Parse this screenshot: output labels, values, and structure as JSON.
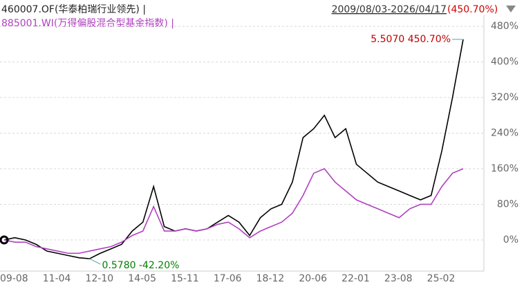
{
  "chart_data": {
    "type": "line",
    "title": "460007.OF(华泰柏瑞行业领先) |",
    "subtitle": "885001.WI(万得偏股混合型基金指数) |",
    "date_range": "2009/08/03-2026/04/17",
    "total_return": "(450.70%)",
    "annotations": [
      "5.5070 450.70%",
      "0.5780 -42.20%"
    ],
    "categories": [
      "09-08",
      null,
      null,
      null,
      "11-04",
      null,
      null,
      null,
      "12-10",
      null,
      null,
      null,
      "14-05",
      null,
      null,
      null,
      "15-11",
      null,
      null,
      null,
      "17-06",
      null,
      null,
      null,
      "18-12",
      null,
      null,
      null,
      "20-06",
      null,
      null,
      null,
      "22-01",
      null,
      null,
      null,
      "23-08",
      null,
      null,
      null,
      "25-02",
      null,
      null,
      null
    ],
    "series": [
      {
        "name": "460007.OF",
        "color": "#000000",
        "values": [
          0,
          5,
          0,
          -10,
          -25,
          -30,
          -35,
          -40,
          -42.2,
          -30,
          -20,
          -10,
          20,
          40,
          120,
          30,
          20,
          25,
          20,
          25,
          40,
          55,
          40,
          10,
          50,
          70,
          80,
          130,
          230,
          250,
          280,
          230,
          250,
          170,
          150,
          130,
          120,
          110,
          100,
          90,
          100,
          200,
          320,
          450.7
        ]
      },
      {
        "name": "885001.WI",
        "color": "#b040c0",
        "values": [
          0,
          -5,
          -5,
          -15,
          -20,
          -25,
          -30,
          -30,
          -25,
          -20,
          -15,
          -5,
          10,
          20,
          75,
          20,
          20,
          25,
          20,
          25,
          35,
          40,
          25,
          5,
          20,
          30,
          40,
          60,
          100,
          150,
          160,
          130,
          110,
          90,
          80,
          70,
          60,
          50,
          70,
          80,
          80,
          120,
          150,
          160
        ]
      }
    ],
    "ylim": [
      -70,
      505
    ],
    "yticks": [
      {
        "value": 0,
        "label": "0%"
      },
      {
        "value": 80,
        "label": "80%"
      },
      {
        "value": 160,
        "label": "160%"
      },
      {
        "value": 240,
        "label": "240%"
      },
      {
        "value": 320,
        "label": "320%"
      },
      {
        "value": 400,
        "label": "400%"
      },
      {
        "value": 480,
        "label": "480%"
      }
    ],
    "grid": true
  }
}
